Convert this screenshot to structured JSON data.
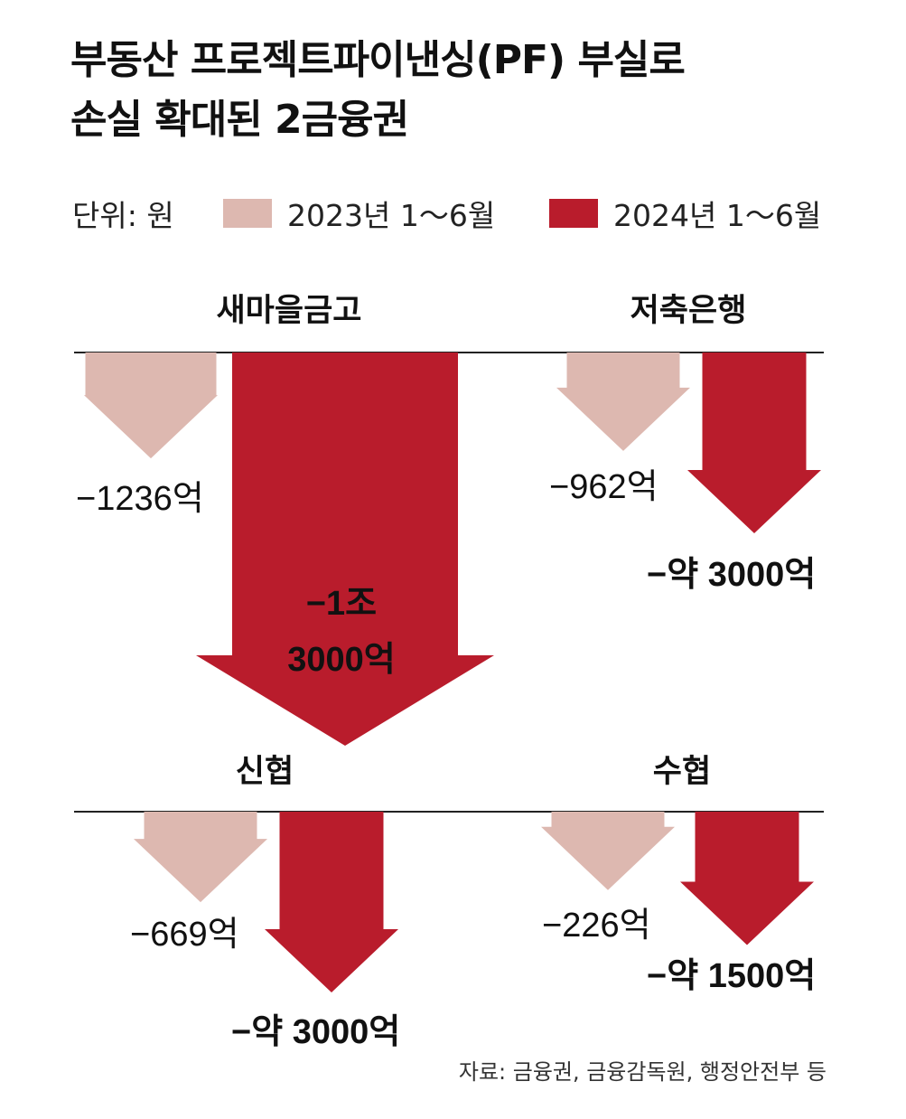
{
  "title_lines": [
    "부동산 프로젝트파이낸싱(PF) 부실로",
    "손실 확대된 2금융권"
  ],
  "unit": "단위: 원",
  "colors": {
    "prev": "#ddb8b0",
    "curr": "#b91c2c",
    "curr_text": "#c0142a",
    "baseline": "#222222"
  },
  "legend": [
    {
      "label": "2023년 1～6월",
      "color": "#ddb8b0"
    },
    {
      "label": "2024년 1～6월",
      "color": "#b91c2c"
    }
  ],
  "chart_data": {
    "type": "bar",
    "orientation": "downward-arrows",
    "unit": "원",
    "categories": [
      "새마을금고",
      "저축은행",
      "신협",
      "수협"
    ],
    "series": [
      {
        "name": "2023년 1～6월",
        "values": [
          -1236,
          -962,
          -669,
          -226
        ],
        "value_unit": "억"
      },
      {
        "name": "2024년 1～6월",
        "values": [
          -13000,
          -3000,
          -3000,
          -1500
        ],
        "value_unit": "억"
      }
    ],
    "value_labels": [
      {
        "prev": "−1236억",
        "curr_lines": [
          "−1조",
          "3000억"
        ]
      },
      {
        "prev": "−962억",
        "curr_lines": [
          "−약 3000억"
        ]
      },
      {
        "prev": "−669억",
        "curr_lines": [
          "−약 3000억"
        ]
      },
      {
        "prev": "−226억",
        "curr_lines": [
          "−약 1500억"
        ]
      }
    ]
  },
  "source": "자료: 금융권, 금융감독원, 행정안전부 등"
}
